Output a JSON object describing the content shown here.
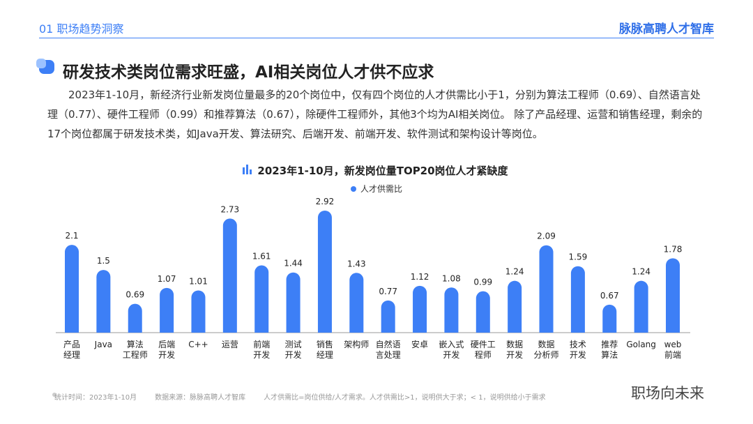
{
  "header": {
    "section": "01 职场趋势洞察",
    "brand": "脉脉高聘人才智库"
  },
  "heading": "研发技术类岗位需求旺盛，AI相关岗位人才供不应求",
  "paragraph": "2023年1-10月，新经济行业新发岗位量最多的20个岗位中，仅有四个岗位的人才供需比小于1，分别为算法工程师（0.69）、自然语言处理（0.77）、硬件工程师（0.99）和推荐算法（0.67），除硬件工程师外，其他3个均为AI相关岗位。 除了产品经理、运营和销售经理，剩余的17个岗位都属于研发技术类，如Java开发、算法研究、后端开发、前端开发、软件测试和架构设计等岗位。",
  "chart_data": {
    "type": "bar",
    "title": "2023年1-10月，新发岗位量TOP20岗位人才紧缺度",
    "categories": [
      "产品\n经理",
      "Java",
      "算法\n工程师",
      "后端\n开发",
      "C++",
      "运营",
      "前端\n开发",
      "测试\n开发",
      "销售\n经理",
      "架构师",
      "自然语\n言处理",
      "安卓",
      "嵌入式\n开发",
      "硬件工\n程师",
      "数据\n开发",
      "数据\n分析师",
      "技术\n开发",
      "推荐\n算法",
      "Golang",
      "web\n前端"
    ],
    "series": [
      {
        "name": "人才供需比",
        "color": "#3d7ff6",
        "values": [
          2.1,
          1.5,
          0.69,
          1.07,
          1.01,
          2.73,
          1.61,
          1.44,
          2.92,
          1.43,
          0.77,
          1.12,
          1.08,
          0.99,
          1.24,
          2.09,
          1.59,
          0.67,
          1.24,
          1.78
        ]
      }
    ]
  },
  "footer": {
    "time": "统计时间：2023年1-10月",
    "source": "数据来源：脉脉高聘人才智库",
    "note": "人才供需比=岗位供给/人才需求。人才供需比>1，说明供大于求；< 1，说明供给小于需求"
  },
  "watermark": "职场向未来"
}
